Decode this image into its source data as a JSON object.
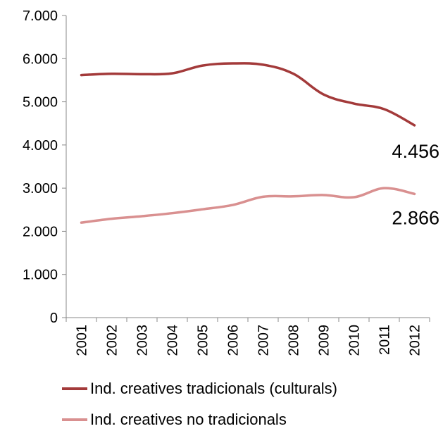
{
  "chart_data": {
    "type": "line",
    "categories": [
      "2001",
      "2002",
      "2003",
      "2004",
      "2005",
      "2006",
      "2007",
      "2008",
      "2009",
      "2010",
      "2011",
      "2012"
    ],
    "series": [
      {
        "name": "Ind. creatives tradicionals (culturals)",
        "color": "#a33a3a",
        "values": [
          5620,
          5650,
          5640,
          5660,
          5840,
          5890,
          5860,
          5650,
          5170,
          4960,
          4830,
          4456
        ],
        "end_label": "4.456"
      },
      {
        "name": "Ind. creatives no tradicionals",
        "color": "#d99090",
        "values": [
          2200,
          2290,
          2350,
          2420,
          2510,
          2610,
          2800,
          2810,
          2840,
          2790,
          3000,
          2866
        ],
        "end_label": "2.866"
      }
    ],
    "ylim": [
      0,
      7000
    ],
    "yticks": [
      "0",
      "1.000",
      "2.000",
      "3.000",
      "4.000",
      "5.000",
      "6.000",
      "7.000"
    ],
    "ytick_values": [
      0,
      1000,
      2000,
      3000,
      4000,
      5000,
      6000,
      7000
    ],
    "grid": false,
    "legend_position": "bottom"
  },
  "legend": {
    "items": [
      {
        "label": "Ind. creatives tradicionals (culturals)",
        "color": "#a33a3a"
      },
      {
        "label": "Ind. creatives no tradicionals",
        "color": "#d99090"
      }
    ]
  }
}
